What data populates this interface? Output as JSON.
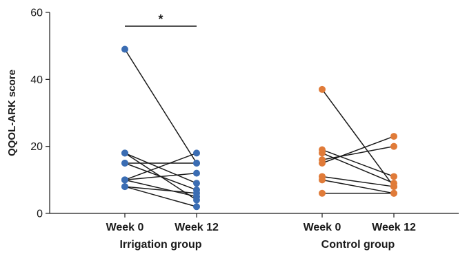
{
  "chart_data": {
    "type": "scatter",
    "ylabel": "QQOL-ARK score",
    "ylim": [
      0,
      60
    ],
    "yticks": [
      "0",
      "20",
      "40",
      "60"
    ],
    "grid": false,
    "groups": [
      {
        "name": "Irrigation group",
        "color": "#3b6db3",
        "x_labels": [
          "Week 0",
          "Week 12"
        ],
        "pairs": [
          [
            49,
            15
          ],
          [
            18,
            9
          ],
          [
            18,
            4
          ],
          [
            15,
            15
          ],
          [
            15,
            7
          ],
          [
            10,
            18
          ],
          [
            10,
            12
          ],
          [
            10,
            5
          ],
          [
            8,
            6
          ],
          [
            8,
            2
          ]
        ],
        "significance": "*"
      },
      {
        "name": "Control group",
        "color": "#e07b39",
        "x_labels": [
          "Week 0",
          "Week 12"
        ],
        "pairs": [
          [
            37,
            8
          ],
          [
            19,
            11
          ],
          [
            18,
            9
          ],
          [
            16,
            20
          ],
          [
            15,
            23
          ],
          [
            11,
            8
          ],
          [
            10,
            6
          ],
          [
            6,
            6
          ]
        ]
      }
    ]
  }
}
